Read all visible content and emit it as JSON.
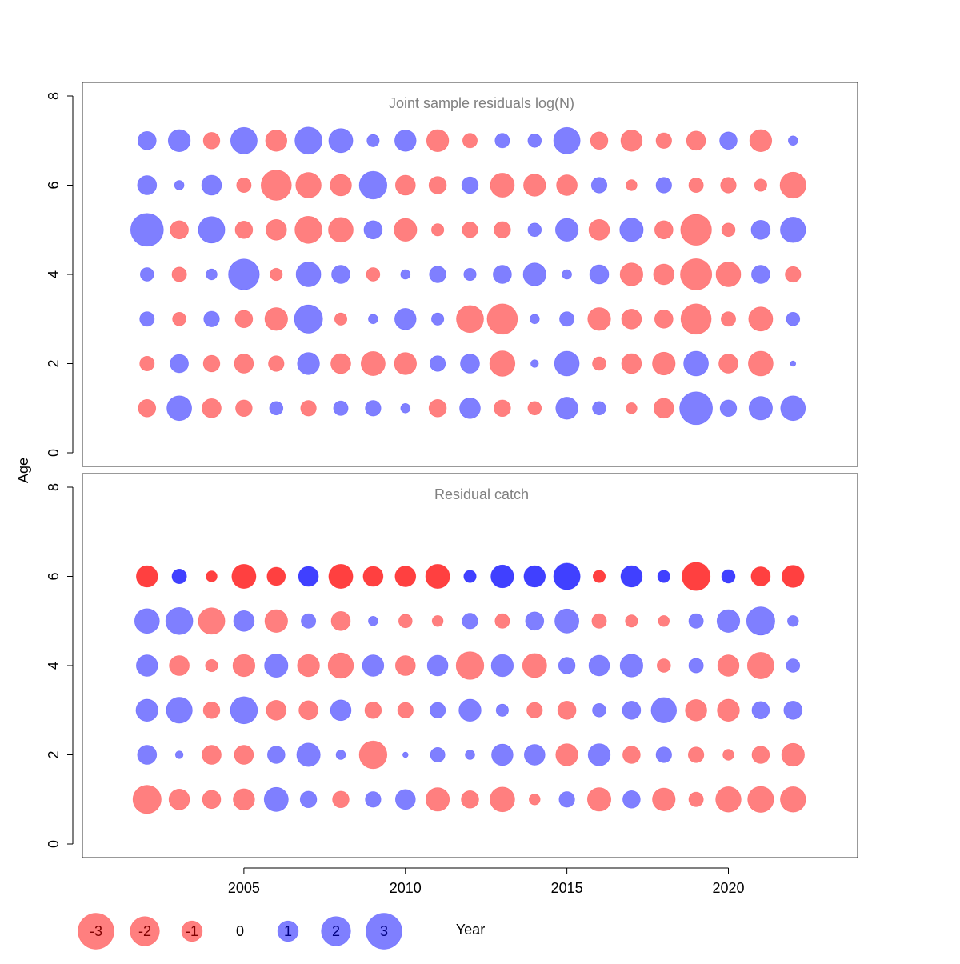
{
  "colors": {
    "negative": "#ff0000",
    "positive": "#0000ff",
    "negative_label": "#800000",
    "positive_label": "#000080",
    "zero_label": "#000000",
    "panel_title": "#808080"
  },
  "axis": {
    "ylabel": "Age",
    "xlabel": "Year",
    "xticks": [
      "2005",
      "2010",
      "2015",
      "2020"
    ],
    "yticks": [
      "0",
      "2",
      "4",
      "6",
      "8"
    ]
  },
  "legend": {
    "items": [
      {
        "label": "-3",
        "value": -3
      },
      {
        "label": "-2",
        "value": -2
      },
      {
        "label": "-1",
        "value": -1
      },
      {
        "label": "0",
        "value": 0
      },
      {
        "label": "1",
        "value": 1
      },
      {
        "label": "2",
        "value": 2
      },
      {
        "label": "3",
        "value": 3
      }
    ]
  },
  "chart_data": [
    {
      "type": "scatter",
      "title": "Joint sample residuals log(N)",
      "xlim": [
        2000,
        2024
      ],
      "ylim": [
        0,
        8
      ],
      "alpha": 0.5,
      "years": [
        2002,
        2003,
        2004,
        2005,
        2006,
        2007,
        2008,
        2009,
        2010,
        2011,
        2012,
        2013,
        2014,
        2015,
        2016,
        2017,
        2018,
        2019,
        2020,
        2021,
        2022
      ],
      "ages": [
        1,
        2,
        3,
        4,
        5,
        6,
        7
      ],
      "residuals": [
        [
          -1.0,
          2.0,
          -1.2,
          -0.9,
          0.6,
          -0.8,
          0.7,
          0.8,
          0.3,
          -1.0,
          1.4,
          -0.9,
          -0.6,
          1.6,
          0.6,
          -0.4,
          -1.3,
          3.5,
          0.9,
          1.8,
          2.0
        ],
        [
          -0.7,
          1.1,
          -0.9,
          -1.2,
          -0.8,
          1.6,
          -1.3,
          -1.9,
          -1.6,
          0.8,
          1.2,
          -2.1,
          0.2,
          2.0,
          -0.6,
          -1.3,
          -1.7,
          2.0,
          -1.2,
          -2.0,
          0.1
        ],
        [
          0.7,
          -0.6,
          0.8,
          -1.0,
          -1.7,
          2.6,
          -0.5,
          0.3,
          1.5,
          0.5,
          -2.4,
          -3.0,
          0.3,
          0.7,
          -1.7,
          -1.3,
          -1.1,
          -3.0,
          -0.7,
          -1.9,
          0.6
        ],
        [
          0.6,
          -0.7,
          0.4,
          3.1,
          -0.5,
          2.0,
          1.1,
          -0.6,
          0.3,
          0.9,
          0.5,
          1.1,
          1.7,
          0.3,
          1.2,
          -1.7,
          -1.4,
          -3.2,
          -2.0,
          1.1,
          -0.8
        ],
        [
          3.5,
          -1.1,
          2.3,
          -1.0,
          -1.4,
          -2.4,
          -2.0,
          1.1,
          -1.7,
          -0.5,
          -0.8,
          -0.9,
          0.6,
          1.7,
          -1.4,
          1.8,
          -1.1,
          -3.1,
          -0.6,
          1.2,
          2.1
        ],
        [
          1.2,
          0.3,
          1.3,
          -0.7,
          -3.0,
          -2.1,
          -1.5,
          2.5,
          -1.3,
          -1.0,
          0.9,
          -1.9,
          -1.6,
          -1.4,
          0.8,
          -0.4,
          0.8,
          -0.7,
          -0.8,
          -0.5,
          -2.2
        ],
        [
          1.1,
          1.6,
          -0.9,
          2.3,
          -1.5,
          2.4,
          1.9,
          0.5,
          1.5,
          -1.6,
          -0.7,
          0.7,
          0.6,
          2.3,
          -1.0,
          -1.5,
          -0.8,
          -1.2,
          1.0,
          -1.6,
          0.3
        ]
      ]
    },
    {
      "type": "scatter",
      "title": "Residual catch",
      "xlim": [
        2000,
        2024
      ],
      "ylim": [
        0,
        8
      ],
      "alpha": [
        0.5,
        0.5,
        0.5,
        0.5,
        0.5,
        0.75
      ],
      "years": [
        2002,
        2003,
        2004,
        2005,
        2006,
        2007,
        2008,
        2009,
        2010,
        2011,
        2012,
        2013,
        2014,
        2015,
        2016,
        2017,
        2018,
        2019,
        2020,
        2021,
        2022
      ],
      "ages": [
        1,
        2,
        3,
        4,
        5,
        6
      ],
      "residuals": [
        [
          -2.6,
          -1.4,
          -1.1,
          -1.5,
          1.9,
          0.9,
          -0.9,
          0.8,
          1.3,
          -1.8,
          -1.0,
          -2.0,
          -0.4,
          0.8,
          -1.8,
          1.0,
          -1.7,
          -0.7,
          -2.1,
          -2.2,
          -2.1
        ],
        [
          1.2,
          0.2,
          -1.2,
          -1.2,
          1.0,
          1.8,
          0.3,
          -2.5,
          0.1,
          0.7,
          0.3,
          1.5,
          1.4,
          -1.6,
          1.6,
          -1.0,
          0.8,
          -0.8,
          -0.4,
          -1.0,
          -1.7
        ],
        [
          1.6,
          2.2,
          -0.9,
          2.4,
          -1.3,
          -1.2,
          1.4,
          -0.9,
          -0.8,
          0.8,
          1.6,
          0.5,
          -0.8,
          -1.1,
          0.6,
          1.1,
          2.1,
          -1.5,
          -1.6,
          1.0,
          1.1
        ],
        [
          1.5,
          -1.3,
          -0.5,
          -1.6,
          1.8,
          -1.6,
          -2.1,
          1.5,
          -1.3,
          1.4,
          -2.5,
          1.6,
          -1.9,
          0.9,
          1.4,
          1.7,
          -0.6,
          0.7,
          -1.5,
          -2.3,
          0.6
        ],
        [
          2.0,
          2.4,
          -2.3,
          1.4,
          -1.7,
          0.7,
          -1.2,
          0.3,
          -0.6,
          -0.4,
          0.8,
          -0.7,
          1.1,
          1.9,
          -0.7,
          -0.5,
          -0.4,
          0.7,
          1.7,
          2.6,
          0.4
        ],
        [
          -1.5,
          0.7,
          -0.4,
          -1.9,
          -1.1,
          1.3,
          -1.9,
          -1.3,
          -1.4,
          -1.9,
          0.5,
          1.7,
          1.5,
          2.3,
          -0.5,
          1.5,
          0.5,
          -2.6,
          0.6,
          -1.2,
          -1.6
        ]
      ]
    }
  ]
}
